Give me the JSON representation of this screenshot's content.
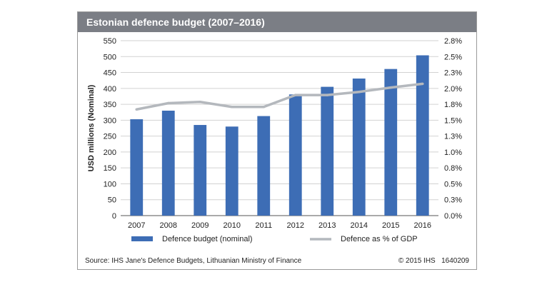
{
  "chart_data": {
    "type": "bar",
    "title": "Estonian defence budget (2007–2016)",
    "categories": [
      "2007",
      "2008",
      "2009",
      "2010",
      "2011",
      "2012",
      "2013",
      "2014",
      "2015",
      "2016"
    ],
    "series": [
      {
        "name": "Defence budget (nominal)",
        "type": "bar",
        "axis": "left",
        "color": "#3d6db5",
        "values": [
          303,
          330,
          285,
          280,
          313,
          381,
          405,
          431,
          461,
          504
        ]
      },
      {
        "name": "Defence as % of GDP",
        "type": "line",
        "axis": "right",
        "color": "#b4b8bd",
        "values": [
          1.7,
          1.8,
          1.82,
          1.74,
          1.74,
          1.93,
          1.93,
          1.98,
          2.05,
          2.11
        ]
      }
    ],
    "ylabel": "USD millions (Nominal)",
    "ylim": [
      0,
      550
    ],
    "y_ticks": [
      "0",
      "50",
      "100",
      "150",
      "200",
      "250",
      "300",
      "350",
      "400",
      "450",
      "500",
      "550"
    ],
    "y2lim": [
      0,
      2.8
    ],
    "y2_ticks": [
      "0.0%",
      "0.3%",
      "0.5%",
      "0.8%",
      "1.0%",
      "1.3%",
      "1.5%",
      "1.8%",
      "2.0%",
      "2.3%",
      "2.5%",
      "2.8%"
    ],
    "grid": true,
    "legend_position": "bottom"
  },
  "footer": {
    "source": "Source: IHS Jane's Defence Budgets, Lithuanian Ministry of Finance",
    "credit": "© 2015 IHS   1640209"
  }
}
